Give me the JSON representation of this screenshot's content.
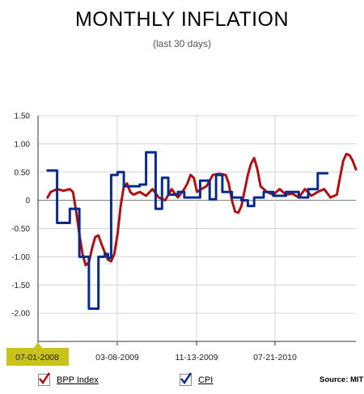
{
  "title": "MONTHLY INFLATION",
  "subtitle": "(last 30 days)",
  "source": "Source: MIT",
  "colors": {
    "bpp": "#b01010",
    "cpi": "#0a2a8c",
    "highlight": "#c9c21a",
    "grid": "#d4d4d4"
  },
  "legend": [
    {
      "label": "BPP Index",
      "color": "#b01010",
      "checked": true
    },
    {
      "label": "CPI",
      "color": "#0a2a8c",
      "checked": true
    }
  ],
  "chart_data": {
    "type": "line",
    "title": "MONTHLY INFLATION",
    "subtitle": "(last 30 days)",
    "ylim": [
      -2.5,
      1.5
    ],
    "yticks": [
      "1.50",
      "1.00",
      "0.50",
      "0",
      "-0.50",
      "-1.00",
      "-1.50",
      "-2.00"
    ],
    "xticks": [
      "07-01-2008",
      "03-08-2009",
      "11-13-2009",
      "07-21-2010"
    ],
    "highlighted_xtick": "07-01-2008",
    "xrange": [
      0,
      100
    ],
    "grid": true,
    "series": [
      {
        "name": "BPP Index",
        "color": "#b01010",
        "points": [
          [
            3,
            0.05
          ],
          [
            4,
            0.15
          ],
          [
            6,
            0.2
          ],
          [
            8,
            0.17
          ],
          [
            10,
            0.2
          ],
          [
            11,
            0.15
          ],
          [
            12,
            -0.2
          ],
          [
            13,
            -0.6
          ],
          [
            14,
            -0.95
          ],
          [
            15,
            -1.15
          ],
          [
            16,
            -1.1
          ],
          [
            17,
            -0.85
          ],
          [
            18,
            -0.65
          ],
          [
            19,
            -0.62
          ],
          [
            20,
            -0.78
          ],
          [
            21,
            -0.92
          ],
          [
            22,
            -1.05
          ],
          [
            23,
            -1.08
          ],
          [
            24,
            -0.95
          ],
          [
            25,
            -0.6
          ],
          [
            26,
            -0.1
          ],
          [
            27,
            0.25
          ],
          [
            28,
            0.3
          ],
          [
            29,
            0.15
          ],
          [
            30,
            0.1
          ],
          [
            32,
            0.15
          ],
          [
            34,
            0.08
          ],
          [
            36,
            0.2
          ],
          [
            38,
            0.05
          ],
          [
            40,
            0.0
          ],
          [
            42,
            0.2
          ],
          [
            44,
            0.05
          ],
          [
            46,
            0.2
          ],
          [
            47,
            0.3
          ],
          [
            48,
            0.45
          ],
          [
            49,
            0.4
          ],
          [
            50,
            0.15
          ],
          [
            52,
            0.22
          ],
          [
            53,
            0.25
          ],
          [
            55,
            0.45
          ],
          [
            57,
            0.47
          ],
          [
            59,
            0.45
          ],
          [
            60,
            0.3
          ],
          [
            61,
            0.0
          ],
          [
            62,
            -0.2
          ],
          [
            63,
            -0.22
          ],
          [
            64,
            -0.1
          ],
          [
            66,
            0.45
          ],
          [
            67,
            0.65
          ],
          [
            68,
            0.75
          ],
          [
            69,
            0.55
          ],
          [
            70,
            0.25
          ],
          [
            72,
            0.15
          ],
          [
            74,
            0.1
          ],
          [
            76,
            0.2
          ],
          [
            78,
            0.1
          ],
          [
            80,
            0.12
          ],
          [
            82,
            0.05
          ],
          [
            84,
            0.2
          ],
          [
            86,
            0.08
          ],
          [
            88,
            0.15
          ],
          [
            90,
            0.2
          ],
          [
            92,
            0.05
          ],
          [
            94,
            0.1
          ],
          [
            95,
            0.4
          ],
          [
            96,
            0.7
          ],
          [
            97,
            0.82
          ],
          [
            98,
            0.8
          ],
          [
            99,
            0.7
          ],
          [
            100,
            0.55
          ]
        ]
      },
      {
        "name": "CPI",
        "color": "#0a2a8c",
        "points": [
          [
            3,
            0.53
          ],
          [
            6,
            0.53
          ],
          [
            6,
            -0.4
          ],
          [
            10,
            -0.4
          ],
          [
            10,
            -0.15
          ],
          [
            13,
            -0.15
          ],
          [
            13,
            -1.0
          ],
          [
            16,
            -1.0
          ],
          [
            16,
            -1.92
          ],
          [
            19,
            -1.92
          ],
          [
            19,
            -1.0
          ],
          [
            21,
            -1.0
          ],
          [
            21,
            -0.95
          ],
          [
            22,
            -0.95
          ],
          [
            22,
            -1.02
          ],
          [
            23,
            -1.02
          ],
          [
            23,
            0.45
          ],
          [
            25,
            0.45
          ],
          [
            25,
            0.5
          ],
          [
            27,
            0.5
          ],
          [
            27,
            0.25
          ],
          [
            32,
            0.25
          ],
          [
            32,
            0.28
          ],
          [
            34,
            0.28
          ],
          [
            34,
            0.85
          ],
          [
            37,
            0.85
          ],
          [
            37,
            -0.15
          ],
          [
            39,
            -0.15
          ],
          [
            39,
            0.4
          ],
          [
            41,
            0.4
          ],
          [
            41,
            0.1
          ],
          [
            44,
            0.1
          ],
          [
            44,
            0.15
          ],
          [
            46,
            0.15
          ],
          [
            46,
            0.05
          ],
          [
            51,
            0.05
          ],
          [
            51,
            0.35
          ],
          [
            54,
            0.35
          ],
          [
            54,
            0.02
          ],
          [
            56,
            0.02
          ],
          [
            56,
            0.45
          ],
          [
            58,
            0.45
          ],
          [
            58,
            0.15
          ],
          [
            61,
            0.15
          ],
          [
            61,
            0.05
          ],
          [
            64,
            0.05
          ],
          [
            64,
            0.0
          ],
          [
            66,
            0.0
          ],
          [
            66,
            -0.1
          ],
          [
            68,
            -0.1
          ],
          [
            68,
            0.05
          ],
          [
            71,
            0.05
          ],
          [
            71,
            0.15
          ],
          [
            74,
            0.15
          ],
          [
            74,
            0.08
          ],
          [
            78,
            0.08
          ],
          [
            78,
            0.15
          ],
          [
            82,
            0.15
          ],
          [
            82,
            0.05
          ],
          [
            85,
            0.05
          ],
          [
            85,
            0.2
          ],
          [
            88,
            0.2
          ],
          [
            88,
            0.48
          ],
          [
            91,
            0.48
          ]
        ]
      }
    ]
  }
}
